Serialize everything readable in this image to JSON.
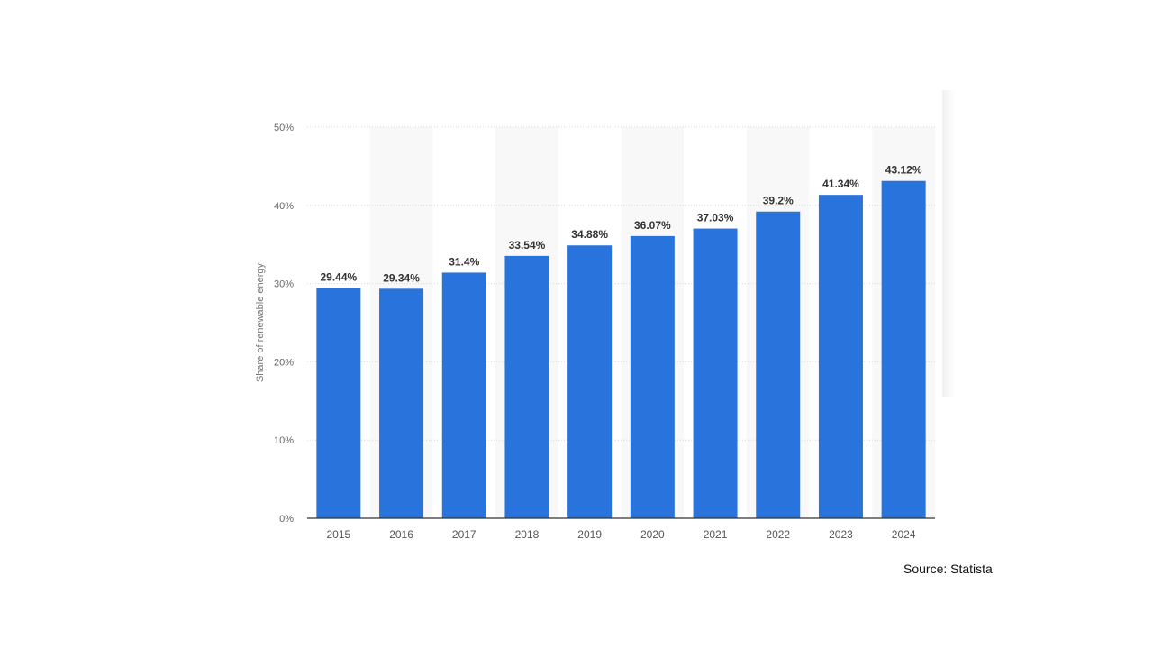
{
  "chart_data": {
    "type": "bar",
    "title": "",
    "xlabel": "",
    "ylabel": "Share of renewable energy",
    "categories": [
      "2015",
      "2016",
      "2017",
      "2018",
      "2019",
      "2020",
      "2021",
      "2022",
      "2023",
      "2024"
    ],
    "values": [
      29.44,
      29.34,
      31.4,
      33.54,
      34.88,
      36.07,
      37.03,
      39.2,
      41.34,
      43.12
    ],
    "data_labels": [
      "29.44%",
      "29.34%",
      "31.4%",
      "33.54%",
      "34.88%",
      "36.07%",
      "37.03%",
      "39.2%",
      "41.34%",
      "43.12%"
    ],
    "ylim": [
      0,
      50
    ],
    "yticks": [
      "0%",
      "10%",
      "20%",
      "30%",
      "40%",
      "50%"
    ],
    "grid": true,
    "bar_color": "#2874dc"
  },
  "source": "Source: Statista"
}
